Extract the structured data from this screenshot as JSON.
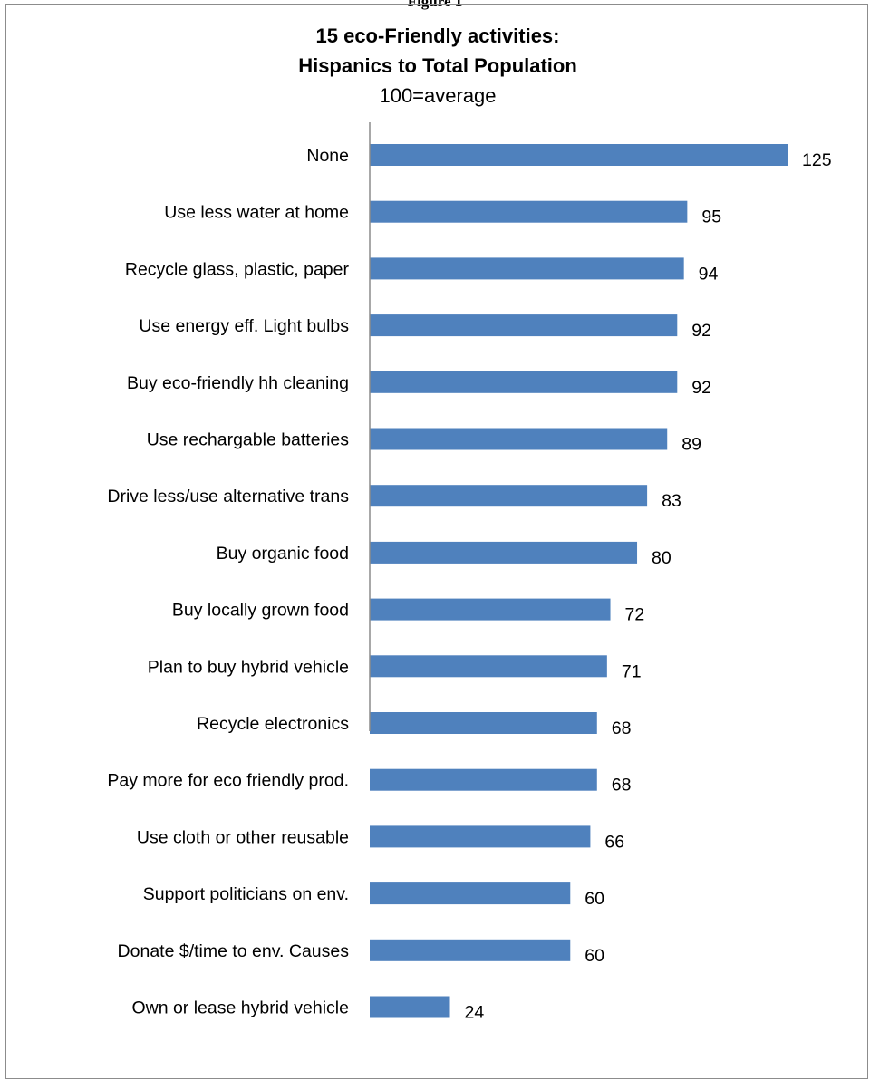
{
  "figure_caption": "Figure 1",
  "chart_data": {
    "type": "bar",
    "orientation": "horizontal",
    "title": "15 eco-Friendly activities:",
    "title_line2": "Hispanics to Total Population",
    "subtitle": "100=average",
    "categories": [
      "None",
      "Use less water at home",
      "Recycle glass, plastic, paper",
      "Use energy eff. Light bulbs",
      "Buy eco-friendly hh cleaning",
      "Use rechargable batteries",
      "Drive less/use alternative trans",
      "Buy organic food",
      "Buy locally grown food",
      "Plan to buy hybrid vehicle",
      "Recycle electronics",
      "Pay more for eco friendly prod.",
      "Use cloth or other reusable",
      "Support politicians on env.",
      "Donate $/time to env. Causes",
      "Own or lease hybrid vehicle"
    ],
    "values": [
      125,
      95,
      94,
      92,
      92,
      89,
      83,
      80,
      72,
      71,
      68,
      68,
      66,
      60,
      60,
      24
    ],
    "data_labels": true,
    "xlim": [
      0,
      125
    ],
    "grid": false,
    "legend": "none",
    "bar_color": "#4f81bd"
  }
}
